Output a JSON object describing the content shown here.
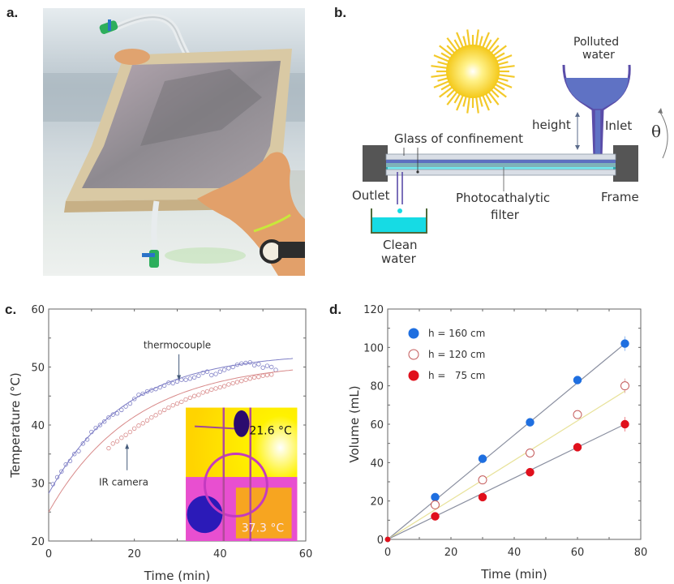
{
  "panels": {
    "a": {
      "label": "a.",
      "photo_description": "Hands holding a framed photocatalytic filter panel with inlet and outlet tubes"
    },
    "b": {
      "label": "b.",
      "labels": {
        "polluted_water": [
          "Polluted",
          "water"
        ],
        "height": "height",
        "inlet": "Inlet",
        "theta": "θ",
        "glass": "Glass of confinement",
        "outlet": "Outlet",
        "filter": [
          "Photocathalytic",
          "filter"
        ],
        "frame": "Frame",
        "clean_water": [
          "Clean",
          "water"
        ]
      },
      "colors": {
        "sun": "#f7d21a",
        "water": "#5466b8",
        "clean_water": "#16dbe4",
        "frame": "#555555",
        "glass": "#d9dee6"
      }
    },
    "c": {
      "label": "c."
    },
    "d": {
      "label": "d."
    }
  },
  "chart_data": [
    {
      "id": "c",
      "type": "scatter",
      "title": "",
      "xlabel": "Time (min)",
      "ylabel": "Temperature (°C)",
      "xlim": [
        0,
        60
      ],
      "ylim": [
        20,
        60
      ],
      "xticks": [
        "0",
        "20",
        "40",
        "60"
      ],
      "yticks": [
        "20",
        "30",
        "40",
        "50",
        "60"
      ],
      "grid": false,
      "annotations": [
        {
          "text": "thermocouple",
          "x": 30,
          "y": 55
        },
        {
          "text": "IR camera",
          "x": 16,
          "y": 31
        }
      ],
      "series": [
        {
          "name": "thermocouple",
          "color": "#7f7fc6",
          "marker": "open-circle",
          "x": [
            1,
            2,
            3,
            4,
            5,
            6,
            7,
            8,
            9,
            10,
            11,
            12,
            13,
            14,
            15,
            16,
            17,
            18,
            19,
            20,
            21,
            22,
            23,
            24,
            25,
            26,
            27,
            28,
            29,
            30,
            31,
            32,
            33,
            34,
            35,
            36,
            37,
            38,
            39,
            40,
            41,
            42,
            43,
            44,
            45,
            46,
            47,
            48,
            49,
            50,
            51,
            52,
            53
          ],
          "y": [
            29.8,
            31.0,
            32.0,
            33.2,
            33.8,
            35.0,
            35.5,
            36.8,
            37.5,
            38.8,
            39.5,
            40.0,
            40.6,
            41.3,
            41.8,
            42.0,
            42.6,
            43.2,
            43.7,
            44.5,
            45.2,
            45.4,
            45.8,
            46.0,
            46.2,
            46.5,
            46.8,
            47.3,
            47.2,
            47.5,
            47.8,
            47.8,
            48.0,
            48.2,
            48.5,
            49.0,
            49.2,
            48.6,
            48.8,
            49.2,
            49.5,
            49.8,
            50.0,
            50.4,
            50.6,
            50.7,
            50.8,
            50.3,
            50.5,
            49.9,
            50.2,
            50.0,
            49.5
          ],
          "fit": {
            "type": "exponential",
            "T_inf": 52.5,
            "T0": 28.2,
            "tau": 18
          }
        },
        {
          "name": "IR camera",
          "color": "#d88a8a",
          "marker": "open-circle",
          "x": [
            14,
            15,
            16,
            17,
            18,
            19,
            20,
            21,
            22,
            23,
            24,
            25,
            26,
            27,
            28,
            29,
            30,
            31,
            32,
            33,
            34,
            35,
            36,
            37,
            38,
            39,
            40,
            41,
            42,
            43,
            44,
            45,
            46,
            47,
            48,
            49,
            50,
            51,
            52
          ],
          "y": [
            36.0,
            36.8,
            37.2,
            37.8,
            38.3,
            38.8,
            39.4,
            39.9,
            40.3,
            40.8,
            41.3,
            41.7,
            42.2,
            42.6,
            43.0,
            43.4,
            43.7,
            44.0,
            44.4,
            44.7,
            45.0,
            45.2,
            45.6,
            45.8,
            46.1,
            46.3,
            46.5,
            46.7,
            47.0,
            47.2,
            47.4,
            47.6,
            47.8,
            48.0,
            48.2,
            48.3,
            48.5,
            48.6,
            48.7
          ],
          "fit": {
            "type": "exponential",
            "T_inf": 51.0,
            "T0": 25.0,
            "tau": 20
          }
        }
      ],
      "inset": {
        "type": "thermal-image",
        "labels": [
          "21.6 °C",
          "37.3 °C"
        ]
      }
    },
    {
      "id": "d",
      "type": "scatter",
      "title": "",
      "xlabel": "Time (min)",
      "ylabel": "Volume (mL)",
      "xlim": [
        0,
        80
      ],
      "ylim": [
        0,
        120
      ],
      "xticks": [
        "0",
        "20",
        "40",
        "60",
        "80"
      ],
      "yticks": [
        "0",
        "20",
        "40",
        "60",
        "80",
        "100",
        "120"
      ],
      "grid": false,
      "legend": "top-left",
      "series": [
        {
          "name": "h = 160 cm",
          "color": "#1f6fe0",
          "marker": "filled-circle",
          "line_color": "#8a8fa0",
          "x": [
            0,
            15,
            30,
            45,
            60,
            75
          ],
          "y": [
            0,
            22,
            42,
            61,
            83,
            102
          ]
        },
        {
          "name": "h = 120 cm",
          "color": "#c45a5a",
          "marker": "open-circle",
          "line_color": "#e8e29a",
          "x": [
            0,
            15,
            30,
            45,
            60,
            75
          ],
          "y": [
            0,
            18,
            31,
            45,
            65,
            80
          ]
        },
        {
          "name": "h =   75 cm",
          "color": "#e0101c",
          "marker": "filled-circle",
          "line_color": "#8a8fa0",
          "x": [
            0,
            15,
            30,
            45,
            60,
            75
          ],
          "y": [
            0,
            12,
            22,
            35,
            48,
            60
          ]
        }
      ],
      "fit_lines": [
        {
          "series": "h = 160 cm",
          "slope": 1.36
        },
        {
          "series": "h = 120 cm",
          "slope": 1.03
        },
        {
          "series": "h =   75 cm",
          "slope": 0.8
        }
      ]
    }
  ]
}
